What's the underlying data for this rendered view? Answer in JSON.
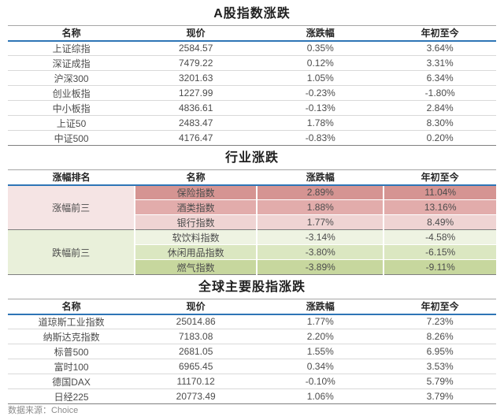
{
  "colors": {
    "header_rule_blue": "#2E75B6",
    "header_top_rule_gray": "#A6A6A6",
    "row_rule_gray": "#D9D9D9",
    "table_bottom_rule_gray": "#7F7F7F",
    "title_text": "#1F1F1F",
    "body_text": "#4C4C4C",
    "footer_text": "#8C8C8C"
  },
  "tables": [
    {
      "title": "A股指数涨跌",
      "columns": [
        "名称",
        "现价",
        "涨跌幅",
        "年初至今"
      ],
      "rows": [
        [
          "上证综指",
          "2584.57",
          "0.35%",
          "3.64%"
        ],
        [
          "深证成指",
          "7479.22",
          "0.12%",
          "3.31%"
        ],
        [
          "沪深300",
          "3201.63",
          "1.05%",
          "6.34%"
        ],
        [
          "创业板指",
          "1227.99",
          "-0.23%",
          "-1.80%"
        ],
        [
          "中小板指",
          "4836.61",
          "-0.13%",
          "2.84%"
        ],
        [
          "上证50",
          "2483.47",
          "1.78%",
          "8.30%"
        ],
        [
          "中证500",
          "4176.47",
          "-0.83%",
          "0.20%"
        ]
      ]
    },
    {
      "title": "行业涨跌",
      "columns": [
        "涨幅排名",
        "名称",
        "涨跌幅",
        "年初至今"
      ],
      "groups": [
        {
          "label": "涨幅前三",
          "label_bg": "#F5E4E4",
          "rows": [
            {
              "cells": [
                "保险指数",
                "2.89%",
                "11.04%"
              ],
              "bg": "#D59492"
            },
            {
              "cells": [
                "酒类指数",
                "1.88%",
                "13.16%"
              ],
              "bg": "#E2ACAB"
            },
            {
              "cells": [
                "银行指数",
                "1.77%",
                "8.49%"
              ],
              "bg": "#EFD4D3"
            }
          ]
        },
        {
          "label": "跌幅前三",
          "label_bg": "#E9F0DA",
          "rows": [
            {
              "cells": [
                "软饮料指数",
                "-3.14%",
                "-4.58%"
              ],
              "bg": "#EEF3E2"
            },
            {
              "cells": [
                "休闲用品指数",
                "-3.80%",
                "-6.15%"
              ],
              "bg": "#DBE7C1"
            },
            {
              "cells": [
                "燃气指数",
                "-3.89%",
                "-9.11%"
              ],
              "bg": "#C7D79E"
            }
          ]
        }
      ]
    },
    {
      "title": "全球主要股指涨跌",
      "columns": [
        "名称",
        "现价",
        "涨跌幅",
        "年初至今"
      ],
      "rows": [
        [
          "道琼斯工业指数",
          "25014.86",
          "1.77%",
          "7.23%"
        ],
        [
          "纳斯达克指数",
          "7183.08",
          "2.20%",
          "8.26%"
        ],
        [
          "标普500",
          "2681.05",
          "1.55%",
          "6.95%"
        ],
        [
          "富时100",
          "6965.45",
          "0.34%",
          "3.53%"
        ],
        [
          "德国DAX",
          "11170.12",
          "-0.10%",
          "5.79%"
        ],
        [
          "日经225",
          "20773.49",
          "1.06%",
          "3.79%"
        ]
      ]
    }
  ],
  "footer": {
    "source_label": "数据来源：Choice"
  }
}
